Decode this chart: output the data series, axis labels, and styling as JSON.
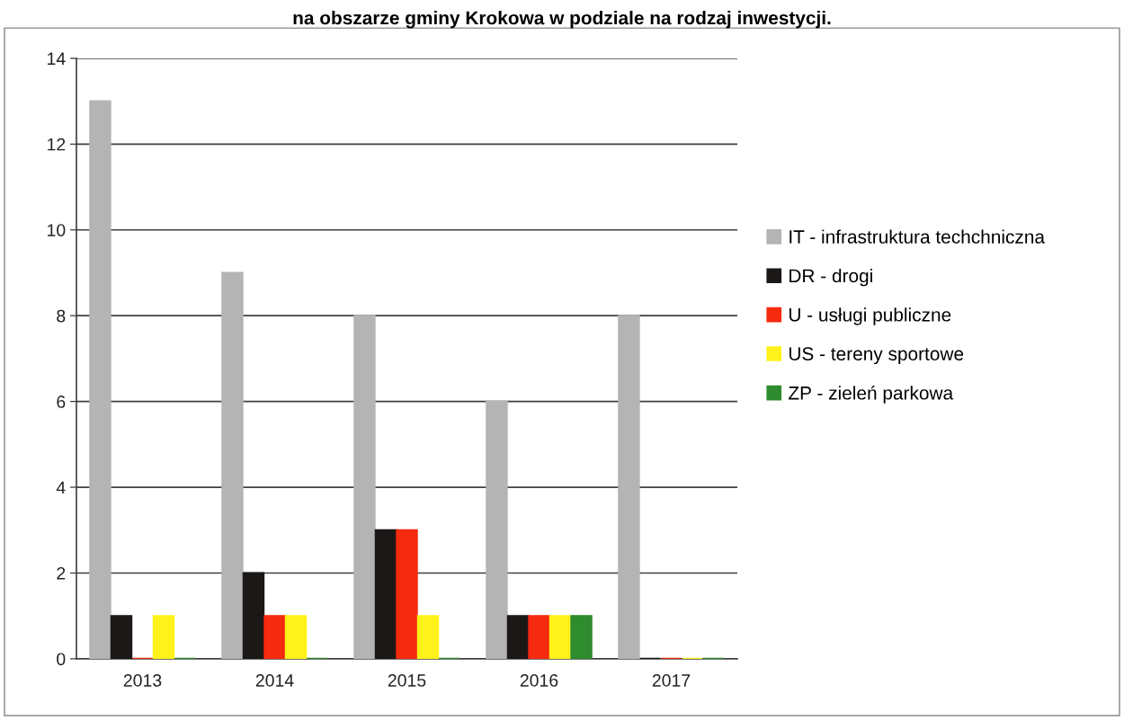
{
  "chart_data": {
    "type": "bar",
    "title": "na obszarze gminy Krokowa w podziale na rodzaj inwestycji.",
    "categories": [
      "2013",
      "2014",
      "2015",
      "2016",
      "2017"
    ],
    "series": [
      {
        "name": "IT - infrastruktura techchniczna",
        "color": "#b4b4b4",
        "values": [
          13,
          9,
          8,
          6,
          8
        ]
      },
      {
        "name": "DR - drogi",
        "color": "#1c1818",
        "values": [
          1,
          2,
          3,
          1,
          0
        ]
      },
      {
        "name": "U - usługi publiczne",
        "color": "#f52a0f",
        "values": [
          0,
          1,
          3,
          1,
          0
        ]
      },
      {
        "name": "US - tereny sportowe",
        "color": "#fff21a",
        "values": [
          1,
          1,
          1,
          1,
          0
        ]
      },
      {
        "name": "ZP - zieleń parkowa",
        "color": "#2e8b2e",
        "values": [
          0,
          0,
          0,
          1,
          0
        ]
      }
    ],
    "ylim": [
      0,
      14
    ],
    "yticks": [
      0,
      2,
      4,
      6,
      8,
      10,
      12,
      14
    ],
    "grid": "y",
    "legend": "right"
  }
}
